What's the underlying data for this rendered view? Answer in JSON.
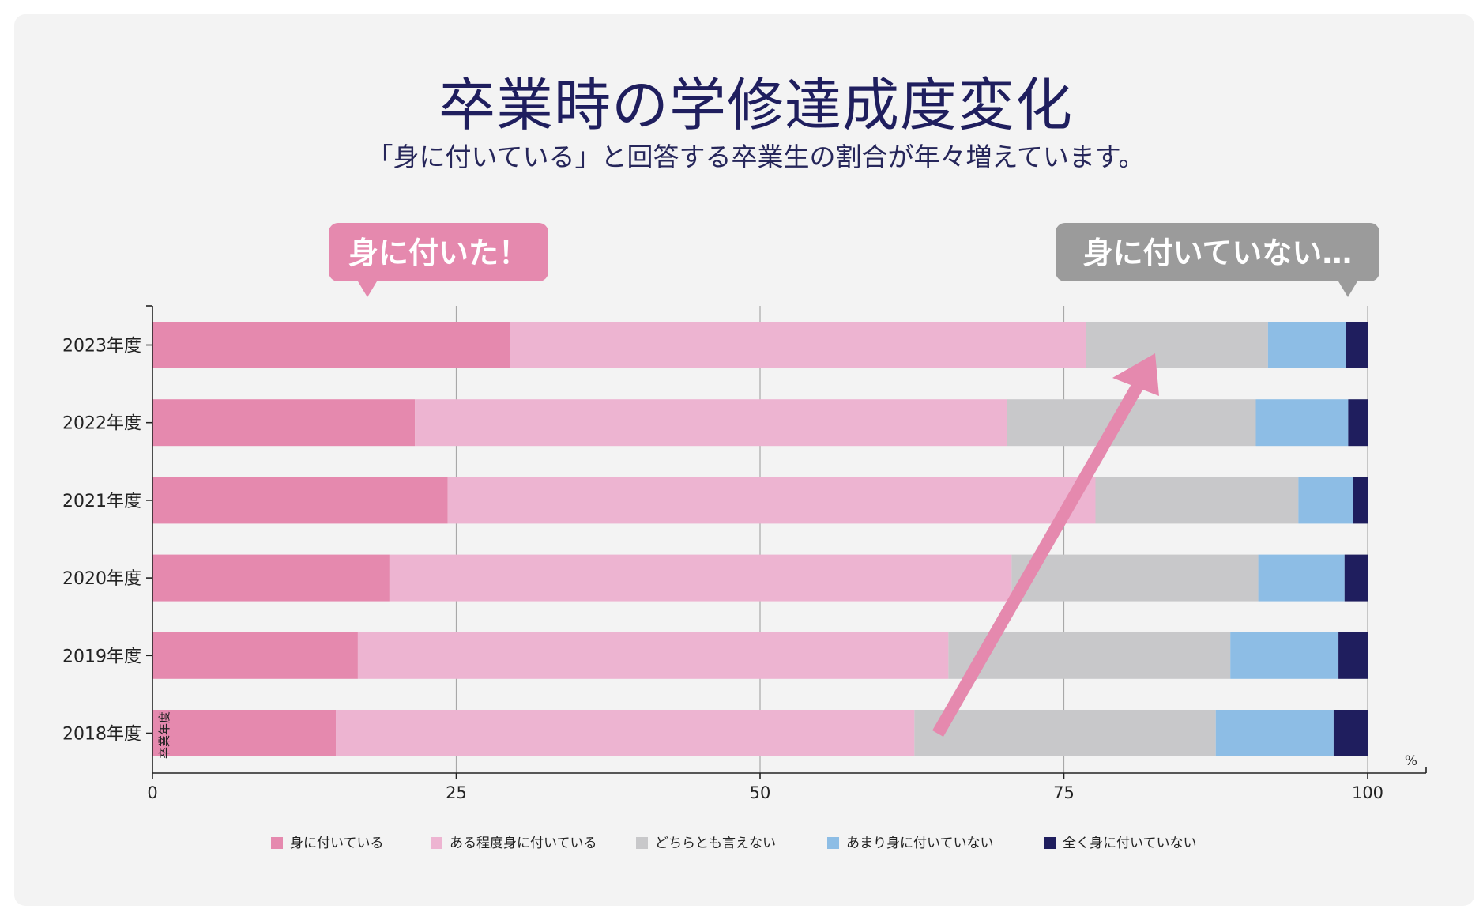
{
  "title": "卒業時の学修達成度変化",
  "subtitle": "「身に付いている」と回答する卒業生の割合が年々増えています。",
  "callouts": {
    "positive": "身に付いた！",
    "negative": "身に付いていない…"
  },
  "colors": {
    "series": [
      "#e589ae",
      "#edb4d1",
      "#c8c8ca",
      "#8dbde5",
      "#1f1e5e"
    ],
    "arrow": "#e589ae",
    "callout_positive": "#e589ae",
    "callout_negative": "#9b9b9b",
    "title": "#1f1e5e"
  },
  "chart_data": {
    "type": "bar",
    "orientation": "horizontal",
    "stacked": true,
    "categories": [
      "2023年度",
      "2022年度",
      "2021年度",
      "2020年度",
      "2019年度",
      "2018年度"
    ],
    "series": [
      {
        "name": "身に付いている",
        "values": [
          29.4,
          21.6,
          24.3,
          19.5,
          16.9,
          15.1
        ]
      },
      {
        "name": "ある程度身に付いている",
        "values": [
          47.4,
          48.7,
          53.3,
          51.2,
          48.6,
          47.6
        ]
      },
      {
        "name": "どちらとも言えない",
        "values": [
          15.0,
          20.5,
          16.7,
          20.3,
          23.2,
          24.8
        ]
      },
      {
        "name": "あまり身に付いていない",
        "values": [
          6.4,
          7.6,
          4.5,
          7.1,
          8.9,
          9.7
        ]
      },
      {
        "name": "全く身に付いていない",
        "values": [
          1.8,
          1.6,
          1.2,
          1.9,
          2.4,
          2.8
        ]
      }
    ],
    "xlim": [
      0,
      100
    ],
    "xticks": [
      0,
      25,
      50,
      75,
      100
    ],
    "xunit": "%",
    "ylabel": "卒業年度",
    "grid": "vertical",
    "legend_position": "bottom"
  }
}
